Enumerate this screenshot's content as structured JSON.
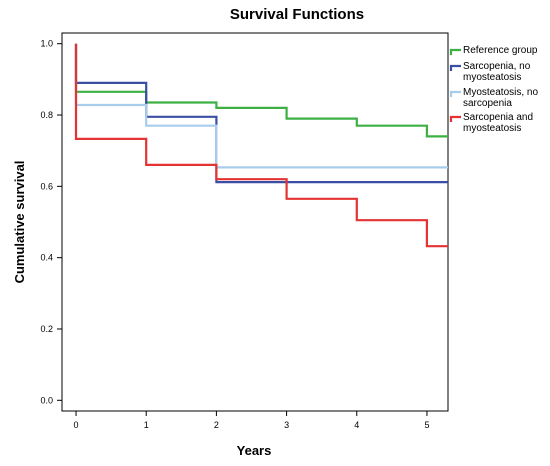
{
  "chart_data": {
    "type": "line",
    "step": true,
    "title": "Survival Functions",
    "xlabel": "Years",
    "ylabel": "Cumulative survival",
    "xlim": [
      -0.2,
      5.3
    ],
    "ylim": [
      -0.03,
      1.03
    ],
    "xticks": [
      0,
      1,
      2,
      3,
      4,
      5
    ],
    "xtick_labels": [
      "0",
      "1",
      "2",
      "3",
      "4",
      "5"
    ],
    "yticks": [
      0.0,
      0.2,
      0.4,
      0.6,
      0.8,
      1.0
    ],
    "ytick_labels": [
      "0.0",
      "0.2",
      "0.4",
      "0.6",
      "0.8",
      "1.0"
    ],
    "grid": false,
    "legend_position": "right",
    "series": [
      {
        "name": "Reference group",
        "color": "#3cb043",
        "points": [
          [
            0,
            1.0
          ],
          [
            0,
            0.865
          ],
          [
            1,
            0.865
          ],
          [
            1,
            0.835
          ],
          [
            2,
            0.835
          ],
          [
            2,
            0.82
          ],
          [
            3,
            0.82
          ],
          [
            3,
            0.79
          ],
          [
            4,
            0.79
          ],
          [
            4,
            0.77
          ],
          [
            5,
            0.77
          ],
          [
            5,
            0.74
          ],
          [
            5.3,
            0.74
          ]
        ]
      },
      {
        "name": "Sarcopenia, no myosteatosis",
        "color": "#3b4ea5",
        "points": [
          [
            0,
            1.0
          ],
          [
            0,
            0.89
          ],
          [
            1,
            0.89
          ],
          [
            1,
            0.795
          ],
          [
            2,
            0.795
          ],
          [
            2,
            0.612
          ],
          [
            5.3,
            0.612
          ]
        ]
      },
      {
        "name": "Myosteatosis, no sarcopenia",
        "color": "#a8cdec",
        "points": [
          [
            0,
            1.0
          ],
          [
            0,
            0.828
          ],
          [
            1,
            0.828
          ],
          [
            1,
            0.77
          ],
          [
            2,
            0.77
          ],
          [
            2,
            0.653
          ],
          [
            5.3,
            0.653
          ]
        ]
      },
      {
        "name": "Sarcopenia and myosteatosis",
        "color": "#e53232",
        "points": [
          [
            0,
            1.0
          ],
          [
            0,
            0.733
          ],
          [
            1,
            0.733
          ],
          [
            1,
            0.66
          ],
          [
            2,
            0.66
          ],
          [
            2,
            0.62
          ],
          [
            3,
            0.62
          ],
          [
            3,
            0.565
          ],
          [
            4,
            0.565
          ],
          [
            4,
            0.505
          ],
          [
            5,
            0.505
          ],
          [
            5,
            0.432
          ],
          [
            5.3,
            0.432
          ]
        ]
      }
    ],
    "legend_labels": [
      [
        "Reference group"
      ],
      [
        "Sarcopenia, no",
        "myosteatosis"
      ],
      [
        "Myosteatosis, no",
        "sarcopenia"
      ],
      [
        "Sarcopenia and",
        "myosteatosis"
      ]
    ]
  }
}
